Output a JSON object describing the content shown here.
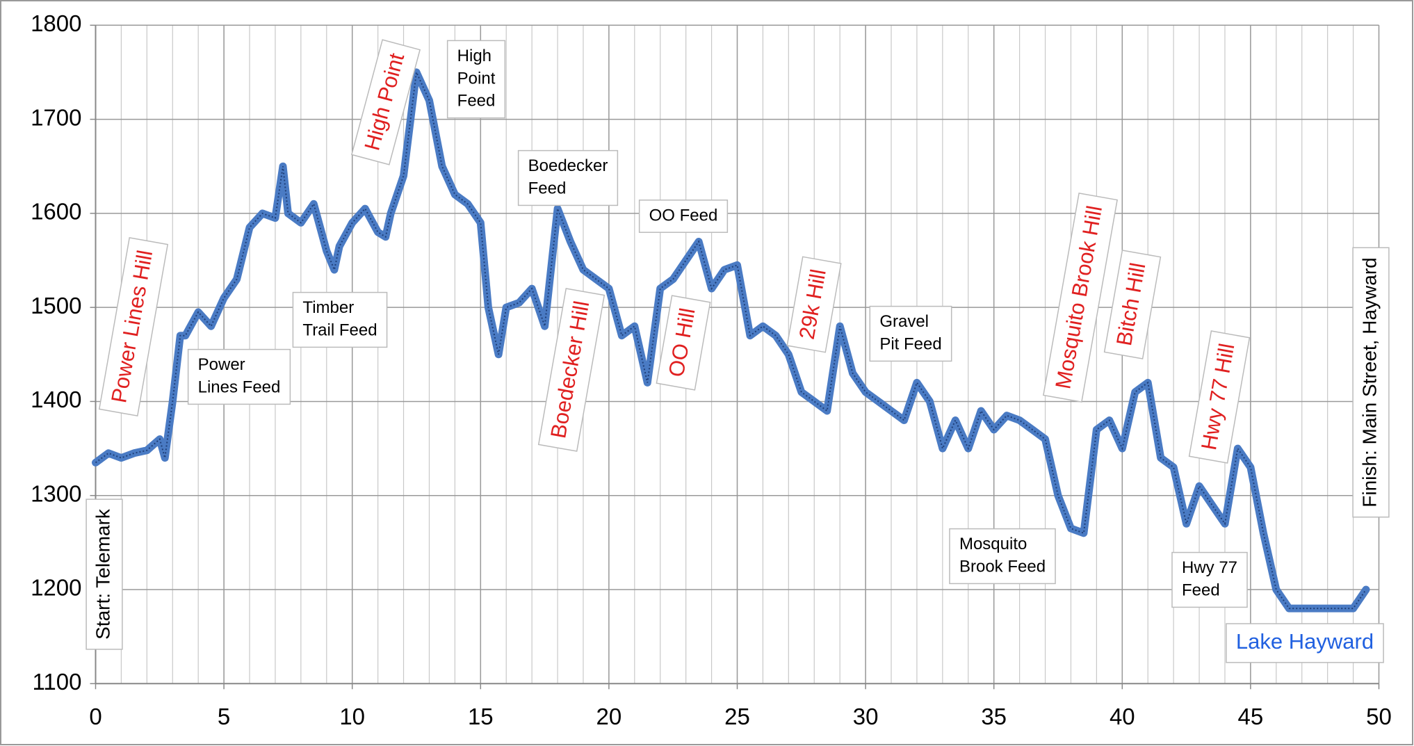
{
  "chart_data": {
    "type": "line",
    "xlim": [
      0,
      50
    ],
    "xticks": [
      0,
      5,
      10,
      15,
      20,
      25,
      30,
      35,
      40,
      45,
      50
    ],
    "xminor": 1,
    "ylim": [
      1100,
      1800
    ],
    "yticks": [
      1100,
      1200,
      1300,
      1400,
      1500,
      1600,
      1700,
      1800
    ],
    "grid": true,
    "series": [
      {
        "color": "#4a7bc4",
        "x": [
          0,
          0.5,
          1,
          1.5,
          2,
          2.5,
          2.7,
          3,
          3.3,
          3.5,
          4,
          4.5,
          5,
          5.5,
          6,
          6.5,
          7,
          7.3,
          7.5,
          8,
          8.5,
          9,
          9.3,
          9.5,
          10,
          10.5,
          11,
          11.3,
          11.5,
          12,
          12.5,
          13,
          13.5,
          14,
          14.5,
          15,
          15.3,
          15.7,
          16,
          16.5,
          17,
          17.5,
          18,
          18.5,
          19,
          19.5,
          20,
          20.5,
          21,
          21.5,
          22,
          22.5,
          23,
          23.5,
          24,
          24.5,
          25,
          25.5,
          26,
          26.5,
          27,
          27.5,
          28,
          28.5,
          29,
          29.5,
          30,
          30.5,
          31,
          31.5,
          32,
          32.5,
          33,
          33.5,
          34,
          34.5,
          35,
          35.5,
          36,
          36.5,
          37,
          37.5,
          38,
          38.5,
          39,
          39.5,
          40,
          40.5,
          41,
          41.5,
          42,
          42.5,
          43,
          43.5,
          44,
          44.5,
          45,
          45.5,
          46,
          46.5,
          47,
          48,
          49,
          49.5
        ],
        "values": [
          1335,
          1345,
          1340,
          1345,
          1348,
          1360,
          1340,
          1400,
          1470,
          1470,
          1495,
          1480,
          1510,
          1530,
          1585,
          1600,
          1595,
          1650,
          1600,
          1590,
          1610,
          1560,
          1540,
          1565,
          1590,
          1605,
          1580,
          1575,
          1600,
          1640,
          1750,
          1720,
          1650,
          1620,
          1610,
          1590,
          1500,
          1450,
          1500,
          1505,
          1520,
          1480,
          1605,
          1570,
          1540,
          1530,
          1520,
          1470,
          1480,
          1420,
          1520,
          1530,
          1550,
          1570,
          1520,
          1540,
          1545,
          1470,
          1480,
          1470,
          1450,
          1410,
          1400,
          1390,
          1480,
          1430,
          1410,
          1400,
          1390,
          1380,
          1420,
          1400,
          1350,
          1380,
          1350,
          1390,
          1370,
          1385,
          1380,
          1370,
          1360,
          1300,
          1265,
          1260,
          1370,
          1380,
          1350,
          1410,
          1420,
          1340,
          1330,
          1270,
          1310,
          1290,
          1270,
          1350,
          1330,
          1260,
          1200,
          1180,
          1180,
          1180,
          1180,
          1200
        ]
      }
    ],
    "annotations": [
      {
        "lines": [
          "Power Lines Hill"
        ]
      },
      {
        "lines": [
          "Power",
          "Lines Feed"
        ]
      },
      {
        "lines": [
          "Timber",
          "Trail Feed"
        ]
      },
      {
        "lines": [
          "High Point"
        ]
      },
      {
        "lines": [
          "High",
          "Point",
          "Feed"
        ]
      },
      {
        "lines": [
          "Boedecker",
          "Feed"
        ]
      },
      {
        "lines": [
          "OO Feed"
        ]
      },
      {
        "lines": [
          "Boedecker Hill"
        ]
      },
      {
        "lines": [
          "OO Hill"
        ]
      },
      {
        "lines": [
          "29k Hill"
        ]
      },
      {
        "lines": [
          "Gravel",
          "Pit Feed"
        ]
      },
      {
        "lines": [
          "Mosquito Brook Hill"
        ]
      },
      {
        "lines": [
          "Bitch Hill"
        ]
      },
      {
        "lines": [
          "Mosquito",
          "Brook Feed"
        ]
      },
      {
        "lines": [
          "Hwy 77 Hill"
        ]
      },
      {
        "lines": [
          "Hwy 77",
          "Feed"
        ]
      },
      {
        "lines": [
          "Start: Telemark"
        ]
      },
      {
        "lines": [
          "Finish: Main Street, Hayward"
        ]
      },
      {
        "lines": [
          "Lake Hayward"
        ]
      }
    ]
  }
}
